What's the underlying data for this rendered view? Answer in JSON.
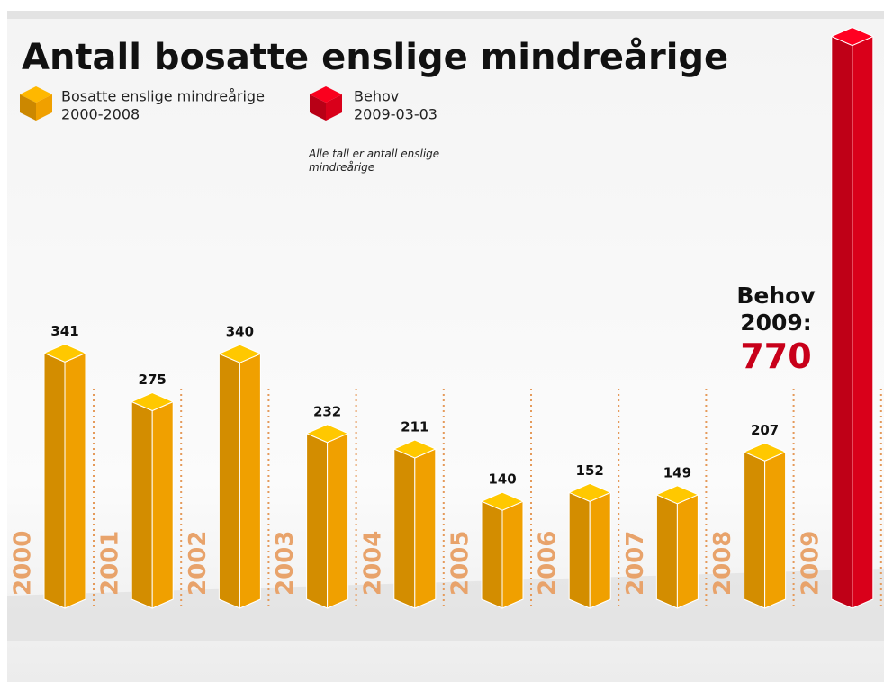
{
  "chart_data": {
    "type": "bar",
    "title": "Antall bosatte enslige mindreårige",
    "note": "Alle tall er antall enslige mindreårige",
    "annotation": "Behov 2009:",
    "categories": [
      "2000",
      "2001",
      "2002",
      "2003",
      "2004",
      "2005",
      "2006",
      "2007",
      "2008",
      "2009"
    ],
    "series": [
      {
        "name": "Bosatte enslige mindreårige",
        "period": "2000-2008",
        "color": "#f0a000",
        "values": [
          341,
          275,
          340,
          232,
          211,
          140,
          152,
          149,
          207,
          null
        ]
      },
      {
        "name": "Behov",
        "period": "2009-03-03",
        "color": "#d9001a",
        "values": [
          null,
          null,
          null,
          null,
          null,
          null,
          null,
          null,
          null,
          770
        ]
      }
    ]
  }
}
